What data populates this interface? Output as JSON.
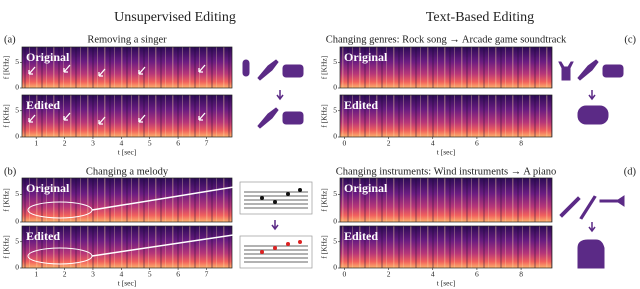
{
  "headers": {
    "left": "Unsupervised Editing",
    "right": "Text-Based Editing"
  },
  "panels": [
    {
      "letter": "(a)",
      "title": "Removing a singer",
      "rows": [
        "Original",
        "Edited"
      ],
      "ylabel": "f [KHz]",
      "yticks": [
        0,
        5
      ],
      "ylim": [
        0,
        8
      ],
      "xlabel": "t [sec]",
      "xticks": [
        1,
        2,
        3,
        4,
        5,
        6,
        7
      ],
      "xlim": [
        0.5,
        7.9
      ]
    },
    {
      "letter": "(b)",
      "title": "Changing a melody",
      "rows": [
        "Original",
        "Edited"
      ],
      "ylabel": "f [KHz]",
      "yticks": [
        0,
        5
      ],
      "ylim": [
        0,
        8
      ],
      "xlabel": "t [sec]",
      "xticks": [
        1,
        2,
        3,
        4,
        5,
        6,
        7
      ],
      "xlim": [
        0.5,
        7.9
      ]
    },
    {
      "letter": "(c)",
      "title": "Changing genres: Rock song → Arcade game soundtrack",
      "rows": [
        "Original",
        "Edited"
      ],
      "ylabel": "f [KHz]",
      "yticks": [
        0,
        5
      ],
      "ylim": [
        0,
        8
      ],
      "xlabel": "t [sec]",
      "xticks": [
        0,
        2,
        4,
        6,
        8
      ],
      "xlim": [
        -0.2,
        9.4
      ]
    },
    {
      "letter": "(d)",
      "title": "Changing instruments: Wind instruments → A piano",
      "rows": [
        "Original",
        "Edited"
      ],
      "ylabel": "f [KHz]",
      "yticks": [
        0,
        5
      ],
      "ylim": [
        0,
        8
      ],
      "xlabel": "t [sec]",
      "xticks": [
        0,
        2,
        4,
        6,
        8
      ],
      "xlim": [
        -0.2,
        9.4
      ]
    }
  ]
}
